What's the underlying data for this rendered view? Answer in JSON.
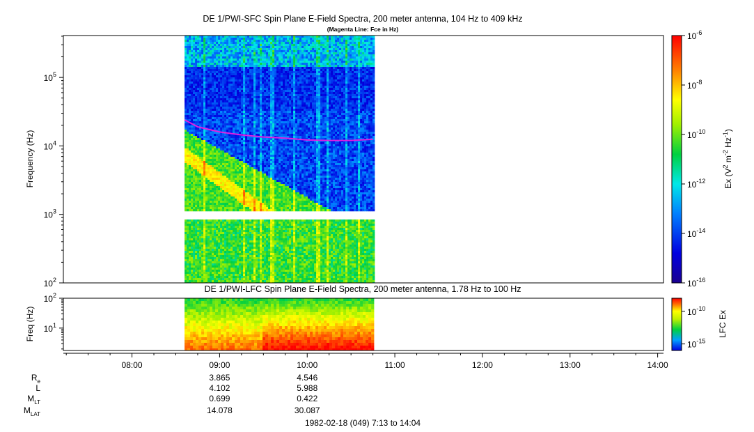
{
  "chart_data": [
    {
      "type": "heatmap",
      "title": "DE 1/PWI-SFC  Spin Plane E-Field Spectra, 200 meter antenna, 104 Hz to 409 kHz",
      "subtitle": "(Magenta Line: Fce in Hz)",
      "ylabel": "Frequency (Hz)",
      "yscale": "log",
      "ylim": [
        100,
        409000
      ],
      "y_ticks": [
        {
          "value": 100,
          "mantissa": "10",
          "exp": "2"
        },
        {
          "value": 1000,
          "mantissa": "10",
          "exp": "3"
        },
        {
          "value": 10000,
          "mantissa": "10",
          "exp": "4"
        },
        {
          "value": 100000,
          "mantissa": "10",
          "exp": "5"
        }
      ],
      "xlim": [
        "07:13",
        "14:04"
      ],
      "data_coverage": [
        "08:36",
        "10:45"
      ],
      "data_gap_hz": [
        900,
        1100
      ],
      "colorbar": {
        "label_parts": [
          "Ex (V",
          "2",
          " m",
          "-2",
          " Hz",
          "-1",
          ")"
        ],
        "scale": "log",
        "range": [
          1e-16,
          1e-06
        ],
        "ticks": [
          {
            "value": 1e-06,
            "mantissa": "10",
            "exp": "-6"
          },
          {
            "value": 1e-08,
            "mantissa": "10",
            "exp": "-8"
          },
          {
            "value": 1e-10,
            "mantissa": "10",
            "exp": "-10"
          },
          {
            "value": 1e-12,
            "mantissa": "10",
            "exp": "-12"
          },
          {
            "value": 1e-14,
            "mantissa": "10",
            "exp": "-14"
          },
          {
            "value": 1e-16,
            "mantissa": "10",
            "exp": "-16"
          }
        ]
      },
      "overlay_line": {
        "color": "#e020e0",
        "points": [
          [
            "08:36",
            24000
          ],
          [
            "08:45",
            19000
          ],
          [
            "09:00",
            16000
          ],
          [
            "09:15",
            14500
          ],
          [
            "09:30",
            13500
          ],
          [
            "09:45",
            13000
          ],
          [
            "10:00",
            12200
          ],
          [
            "10:15",
            12000
          ],
          [
            "10:30",
            12000
          ],
          [
            "10:45",
            12500
          ]
        ]
      }
    },
    {
      "type": "heatmap",
      "title": "DE 1/PWI-LFC  Spin Plane E-Field Spectra, 200 meter antenna, 1.78 Hz to 100 Hz",
      "ylabel": "Freq (Hz)",
      "yscale": "log",
      "ylim": [
        1.78,
        100
      ],
      "y_ticks": [
        {
          "value": 10,
          "mantissa": "10",
          "exp": "1"
        },
        {
          "value": 100,
          "mantissa": "10",
          "exp": "2"
        }
      ],
      "data_coverage": [
        "08:36",
        "10:45"
      ],
      "colorbar": {
        "label": "LFC Ex",
        "scale": "log",
        "range": [
          1e-16,
          1e-08
        ],
        "ticks": [
          {
            "value": 1e-10,
            "mantissa": "10",
            "exp": "-10"
          },
          {
            "value": 1e-15,
            "mantissa": "10",
            "exp": "-15"
          }
        ]
      }
    }
  ],
  "x_axis": {
    "ticks": [
      "08:00",
      "09:00",
      "10:00",
      "11:00",
      "12:00",
      "13:00",
      "14:00"
    ],
    "footer": "1982-02-18 (049) 7:13 to 14:04"
  },
  "ephemeris": {
    "rows": [
      {
        "label": "R",
        "sub": "e",
        "values": [
          "3.865",
          "4.546"
        ]
      },
      {
        "label": "L",
        "sub": "",
        "values": [
          "4.102",
          "5.988"
        ]
      },
      {
        "label": "M",
        "sub": "LT",
        "values": [
          "0.699",
          "0.422"
        ]
      },
      {
        "label": "M",
        "sub": "LAT",
        "values": [
          "14.078",
          "30.087"
        ]
      }
    ],
    "times": [
      "09:00",
      "10:00"
    ]
  }
}
